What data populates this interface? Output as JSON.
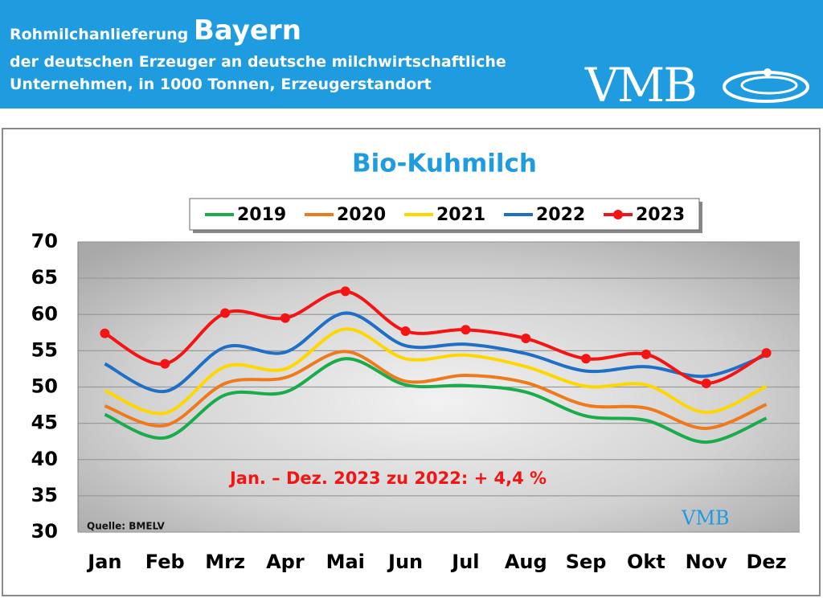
{
  "header": {
    "title": "Rohmilchanlieferung",
    "region": "Bayern",
    "subtitle_1": "der deutschen Erzeuger an deutsche milchwirtschaftliche",
    "subtitle_2": "Unternehmen, in 1000 Tonnen, Erzeugerstandort",
    "logo": "VMB"
  },
  "chart_data": {
    "type": "line",
    "title": "Bio-Kuhmilch",
    "categories": [
      "Jan",
      "Feb",
      "Mrz",
      "Apr",
      "Mai",
      "Jun",
      "Jul",
      "Aug",
      "Sep",
      "Okt",
      "Nov",
      "Dez"
    ],
    "series": [
      {
        "name": "2019",
        "color": "#1aab4b",
        "values": [
          46.2,
          43.0,
          48.9,
          49.3,
          53.9,
          50.3,
          50.2,
          49.3,
          46.0,
          45.4,
          42.4,
          45.7
        ]
      },
      {
        "name": "2020",
        "color": "#ee7a1c",
        "values": [
          47.4,
          44.7,
          50.5,
          51.3,
          54.9,
          50.8,
          51.6,
          50.6,
          47.5,
          47.1,
          44.3,
          47.6
        ]
      },
      {
        "name": "2021",
        "color": "#ffd700",
        "values": [
          49.5,
          46.4,
          52.8,
          52.5,
          58.0,
          53.9,
          54.4,
          52.8,
          50.1,
          50.3,
          46.5,
          50.1
        ]
      },
      {
        "name": "2022",
        "color": "#1f6fc6",
        "values": [
          53.2,
          49.4,
          55.5,
          54.8,
          60.2,
          55.7,
          55.9,
          54.6,
          52.2,
          52.8,
          51.5,
          54.4
        ]
      },
      {
        "name": "2023",
        "color": "#f51414",
        "markers": true,
        "values": [
          57.4,
          53.2,
          60.2,
          59.5,
          63.2,
          57.7,
          57.9,
          56.7,
          53.9,
          54.5,
          50.5,
          54.7
        ]
      }
    ],
    "ylim": [
      30,
      70
    ],
    "yticks": [
      30,
      35,
      40,
      45,
      50,
      55,
      60,
      65,
      70
    ],
    "grid": true,
    "annotation": "Jan. – Dez. 2023 zu 2022: + 4,4 %",
    "source": "Quelle: BMELV",
    "watermark": "VMB"
  }
}
